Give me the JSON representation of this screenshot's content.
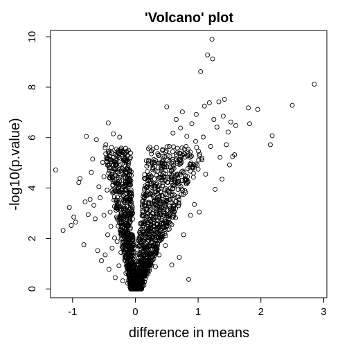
{
  "chart_data": {
    "type": "scatter",
    "title": "'Volcano' plot",
    "xlabel": "difference in means",
    "ylabel": "-log10(p.value)",
    "xlim": [
      -1.35,
      3.05
    ],
    "ylim": [
      -0.35,
      10.25
    ],
    "xticks": [
      -1,
      0,
      1,
      2,
      3
    ],
    "yticks": [
      0,
      2,
      4,
      6,
      8,
      10
    ],
    "grid": false,
    "marker": "open-circle",
    "points": [
      [
        -1.27,
        4.72
      ],
      [
        -1.15,
        2.32
      ],
      [
        -1.05,
        3.23
      ],
      [
        -1.02,
        2.52
      ],
      [
        -0.98,
        2.85
      ],
      [
        -0.95,
        2.65
      ],
      [
        -0.9,
        4.22
      ],
      [
        -0.88,
        4.38
      ],
      [
        -0.82,
        1.75
      ],
      [
        -0.8,
        3.45
      ],
      [
        -0.78,
        6.05
      ],
      [
        -0.75,
        2.95
      ],
      [
        -0.72,
        3.55
      ],
      [
        -0.7,
        4.62
      ],
      [
        -0.68,
        5.15
      ],
      [
        -0.66,
        3.32
      ],
      [
        -0.64,
        2.78
      ],
      [
        -0.62,
        5.92
      ],
      [
        -0.6,
        1.52
      ],
      [
        -0.58,
        4.05
      ],
      [
        -0.56,
        3.62
      ],
      [
        -0.54,
        1.12
      ],
      [
        -0.52,
        5.02
      ],
      [
        -0.5,
        2.92
      ],
      [
        -0.5,
        4.45
      ],
      [
        -0.48,
        1.35
      ],
      [
        -0.47,
        5.72
      ],
      [
        -0.45,
        3.92
      ],
      [
        -0.44,
        2.15
      ],
      [
        -0.43,
        6.58
      ],
      [
        -0.42,
        0.78
      ],
      [
        -0.41,
        4.82
      ],
      [
        -0.4,
        3.05
      ],
      [
        -0.39,
        2.48
      ],
      [
        -0.38,
        5.42
      ],
      [
        -0.37,
        1.62
      ],
      [
        -0.36,
        4.12
      ],
      [
        -0.35,
        6.15
      ],
      [
        -0.34,
        3.52
      ],
      [
        -0.33,
        2.02
      ],
      [
        -0.32,
        0.45
      ],
      [
        -0.31,
        4.95
      ],
      [
        -0.3,
        3.22
      ],
      [
        -0.3,
        5.55
      ],
      [
        -0.29,
        1.88
      ],
      [
        -0.28,
        2.75
      ],
      [
        -0.27,
        4.35
      ],
      [
        -0.26,
        0.92
      ],
      [
        -0.25,
        6.02
      ],
      [
        -0.24,
        3.85
      ],
      [
        -0.23,
        1.45
      ],
      [
        -0.22,
        2.62
      ],
      [
        -0.21,
        4.62
      ],
      [
        -0.2,
        0.32
      ],
      [
        -0.19,
        3.12
      ],
      [
        -0.18,
        2.05
      ],
      [
        -0.17,
        1.15
      ],
      [
        -0.16,
        3.58
      ],
      [
        -0.15,
        0.62
      ],
      [
        -0.14,
        2.42
      ],
      [
        -0.13,
        1.72
      ],
      [
        -0.12,
        0.22
      ],
      [
        -0.11,
        1.95
      ],
      [
        -0.1,
        0.85
      ],
      [
        -0.09,
        1.32
      ],
      [
        -0.08,
        0.42
      ],
      [
        -0.07,
        1.05
      ],
      [
        -0.06,
        0.18
      ],
      [
        -0.05,
        0.66
      ],
      [
        -0.04,
        0.3
      ],
      [
        -0.03,
        0.12
      ],
      [
        -0.02,
        0.2
      ],
      [
        -0.01,
        0.05
      ],
      [
        0.01,
        0.06
      ],
      [
        0.03,
        0.22
      ],
      [
        0.05,
        0.41
      ],
      [
        0.07,
        0.68
      ],
      [
        0.09,
        0.3
      ],
      [
        0.11,
        0.95
      ],
      [
        0.13,
        1.28
      ],
      [
        0.15,
        0.52
      ],
      [
        0.17,
        1.62
      ],
      [
        0.19,
        2.02
      ],
      [
        0.21,
        4.95
      ],
      [
        0.22,
        1.15
      ],
      [
        0.24,
        2.45
      ],
      [
        0.26,
        1.82
      ],
      [
        0.28,
        2.98
      ],
      [
        0.3,
        3.45
      ],
      [
        0.32,
        0.88
      ],
      [
        0.34,
        2.25
      ],
      [
        0.36,
        3.92
      ],
      [
        0.38,
        1.35
      ],
      [
        0.4,
        4.42
      ],
      [
        0.42,
        2.72
      ],
      [
        0.44,
        5.25
      ],
      [
        0.46,
        3.15
      ],
      [
        0.48,
        1.72
      ],
      [
        0.5,
        4.85
      ],
      [
        0.5,
        7.22
      ],
      [
        0.52,
        2.35
      ],
      [
        0.54,
        5.65
      ],
      [
        0.56,
        3.55
      ],
      [
        0.58,
        0.95
      ],
      [
        0.6,
        6.18
      ],
      [
        0.62,
        4.12
      ],
      [
        0.64,
        2.82
      ],
      [
        0.65,
        6.72
      ],
      [
        0.67,
        5.05
      ],
      [
        0.69,
        3.42
      ],
      [
        0.7,
        1.25
      ],
      [
        0.72,
        6.38
      ],
      [
        0.74,
        4.65
      ],
      [
        0.75,
        7.02
      ],
      [
        0.77,
        2.15
      ],
      [
        0.78,
        5.55
      ],
      [
        0.8,
        3.82
      ],
      [
        0.82,
        6.05
      ],
      [
        0.84,
        4.25
      ],
      [
        0.85,
        0.38
      ],
      [
        0.87,
        5.22
      ],
      [
        0.88,
        2.92
      ],
      [
        0.9,
        6.55
      ],
      [
        0.92,
        4.82
      ],
      [
        0.94,
        3.35
      ],
      [
        0.96,
        5.85
      ],
      [
        0.97,
        6.92
      ],
      [
        1.0,
        4.75
      ],
      [
        1.02,
        3.05
      ],
      [
        1.04,
        8.62
      ],
      [
        1.06,
        5.12
      ],
      [
        1.08,
        6.02
      ],
      [
        1.1,
        7.25
      ],
      [
        1.12,
        4.55
      ],
      [
        1.15,
        9.28
      ],
      [
        1.18,
        7.38
      ],
      [
        1.2,
        5.65
      ],
      [
        1.22,
        9.9
      ],
      [
        1.23,
        9.12
      ],
      [
        1.25,
        6.72
      ],
      [
        1.27,
        3.95
      ],
      [
        1.3,
        6.42
      ],
      [
        1.33,
        7.42
      ],
      [
        1.35,
        5.22
      ],
      [
        1.38,
        4.35
      ],
      [
        1.4,
        6.85
      ],
      [
        1.42,
        7.52
      ],
      [
        1.45,
        5.72
      ],
      [
        1.48,
        6.22
      ],
      [
        1.5,
        4.92
      ],
      [
        1.52,
        6.62
      ],
      [
        1.55,
        5.25
      ],
      [
        1.58,
        5.32
      ],
      [
        1.6,
        6.48
      ],
      [
        1.8,
        7.18
      ],
      [
        1.82,
        6.55
      ],
      [
        1.95,
        7.12
      ],
      [
        2.15,
        5.72
      ],
      [
        2.18,
        6.08
      ],
      [
        2.5,
        7.28
      ],
      [
        2.85,
        8.12
      ]
    ]
  }
}
